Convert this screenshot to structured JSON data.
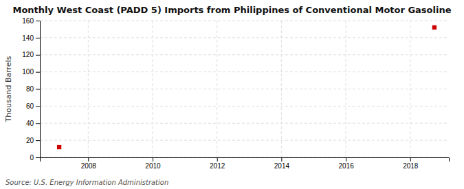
{
  "chart_data": {
    "type": "scatter",
    "title": "Monthly West Coast (PADD 5) Imports from Philippines of Conventional Motor Gasoline",
    "y_label": "Thousand Barrels",
    "source": "Source: U.S. Energy Information Administration",
    "x": [
      2007.1,
      2018.75
    ],
    "values": [
      12,
      152
    ],
    "color": "#cc0000",
    "marker": "square",
    "xlim": [
      2006.5,
      2019.2
    ],
    "ylim": [
      0,
      160
    ],
    "xticks": [
      2008,
      2010,
      2012,
      2014,
      2016,
      2018
    ],
    "yticks": [
      0,
      20,
      40,
      60,
      80,
      100,
      120,
      140,
      160
    ],
    "grid": true
  }
}
